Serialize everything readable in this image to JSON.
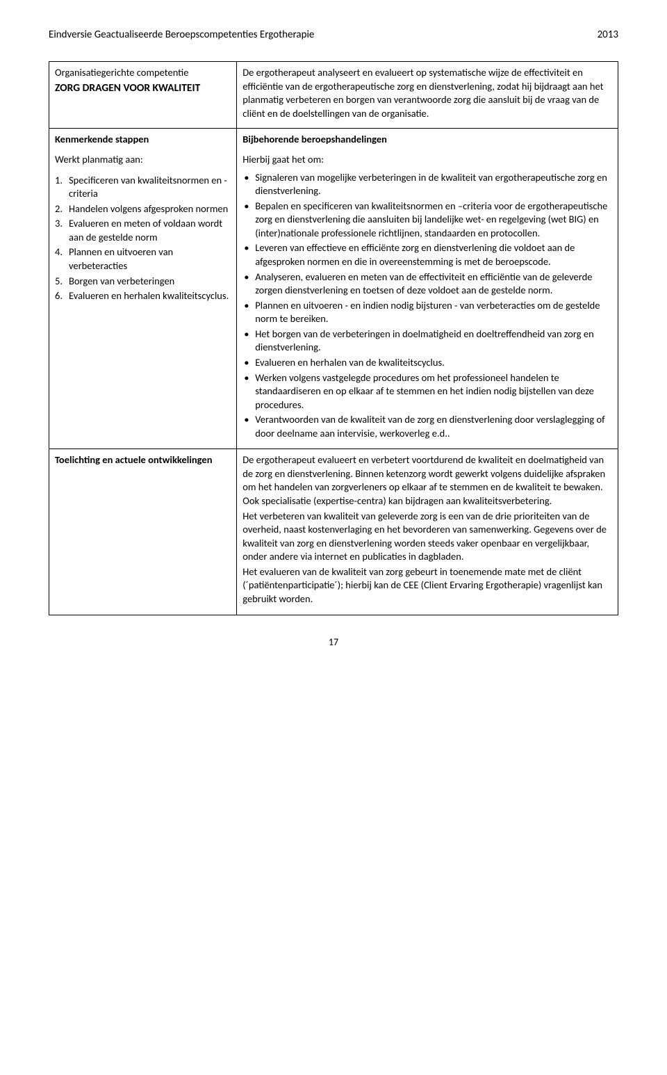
{
  "header": {
    "title": "Eindversie Geactualiseerde Beroepscompetenties Ergotherapie",
    "year": "2013"
  },
  "row1": {
    "left_line1": "Organisatiegerichte competentie",
    "left_line2": "ZORG DRAGEN VOOR KWALITEIT",
    "right": "De ergotherapeut analyseert en evalueert op systematische wijze de effectiviteit en efficiëntie van de ergotherapeutische zorg en dienstverlening, zodat hij bijdraagt aan het planmatig verbeteren en borgen van verantwoorde zorg die aansluit bij de vraag van de cliënt en de doelstellingen van de organisatie."
  },
  "row2": {
    "left_heading": "Kenmerkende stappen",
    "left_sub": "Werkt planmatig aan:",
    "steps": [
      "Specificeren van kwaliteits­normen en -criteria",
      "Handelen volgens afgesproken normen",
      "Evalueren en meten of voldaan wordt aan de gestelde norm",
      "Plannen en uitvoeren van verbeteracties",
      "Borgen van verbeteringen",
      "Evalueren en herhalen kwaliteitscyclus."
    ],
    "right_heading": "Bijbehorende beroepshandelingen",
    "right_sub": "Hierbij gaat het om:",
    "bullets": [
      "Signaleren van mogelijke verbeteringen in de kwaliteit van ergotherapeutische zorg en dienstverlening.",
      "Bepalen en specificeren van kwaliteitsnormen en –criteria voor de ergotherapeutische zorg en dienstverlening die aansluiten bij landelijke wet- en regelgeving (wet BIG) en (inter)nationale professionele richtlijnen, standaarden en protocollen.",
      "Leveren van effectieve en efficiënte zorg en dienstverlening die voldoet aan de afgesproken normen en die in overeenstemming is met de beroepscode.",
      "Analyseren, evalueren en meten van de effectiviteit en efficiëntie van de geleverde zorgen dienstverlening en toetsen of deze voldoet aan de gestelde norm.",
      "Plannen en uitvoeren - en indien nodig bijsturen - van verbeteracties om de gestelde norm te bereiken.",
      "Het borgen van de verbeteringen in doelmatigheid en doeltreffendheid van zorg en dienstverlening.",
      "Evalueren en herhalen van de kwaliteitscyclus.",
      "Werken volgens vastgelegde procedures om het professioneel handelen te standaardiseren en op elkaar af te stemmen en het indien nodig bijstellen van deze procedures.",
      "Verantwoorden van de kwaliteit van de zorg en dienstverlening door verslaglegging of door deelname aan intervisie, werkoverleg e.d.."
    ]
  },
  "row3": {
    "left_heading": "Toelichting en actuele ontwikkelingen",
    "p1": "De ergotherapeut evalueert en verbetert voortdurend de kwaliteit en doelmatigheid van de zorg en dienstverlening. Binnen ketenzorg wordt gewerkt volgens duidelijke afspraken om het handelen van zorgverleners op elkaar af te stemmen en de kwaliteit te bewaken. Ook specialisatie (expertise-centra) kan bijdragen aan kwaliteitsverbetering.",
    "p2": "Het verbeteren van kwaliteit van geleverde zorg is een van de drie prioriteiten van de overheid, naast kostenverlaging en het bevorderen van samenwerking. Gegevens over de kwaliteit van zorg en dienstverlening worden steeds vaker openbaar en vergelijkbaar, onder andere via internet en publicaties in dagbladen.",
    "p3": "Het evalueren van de kwaliteit van zorg gebeurt in toenemende mate met de cliënt (´patiëntenparticipatie´); hierbij kan de CEE (Client Ervaring Ergotherapie) vragenlijst kan gebruikt worden."
  },
  "page_number": "17"
}
